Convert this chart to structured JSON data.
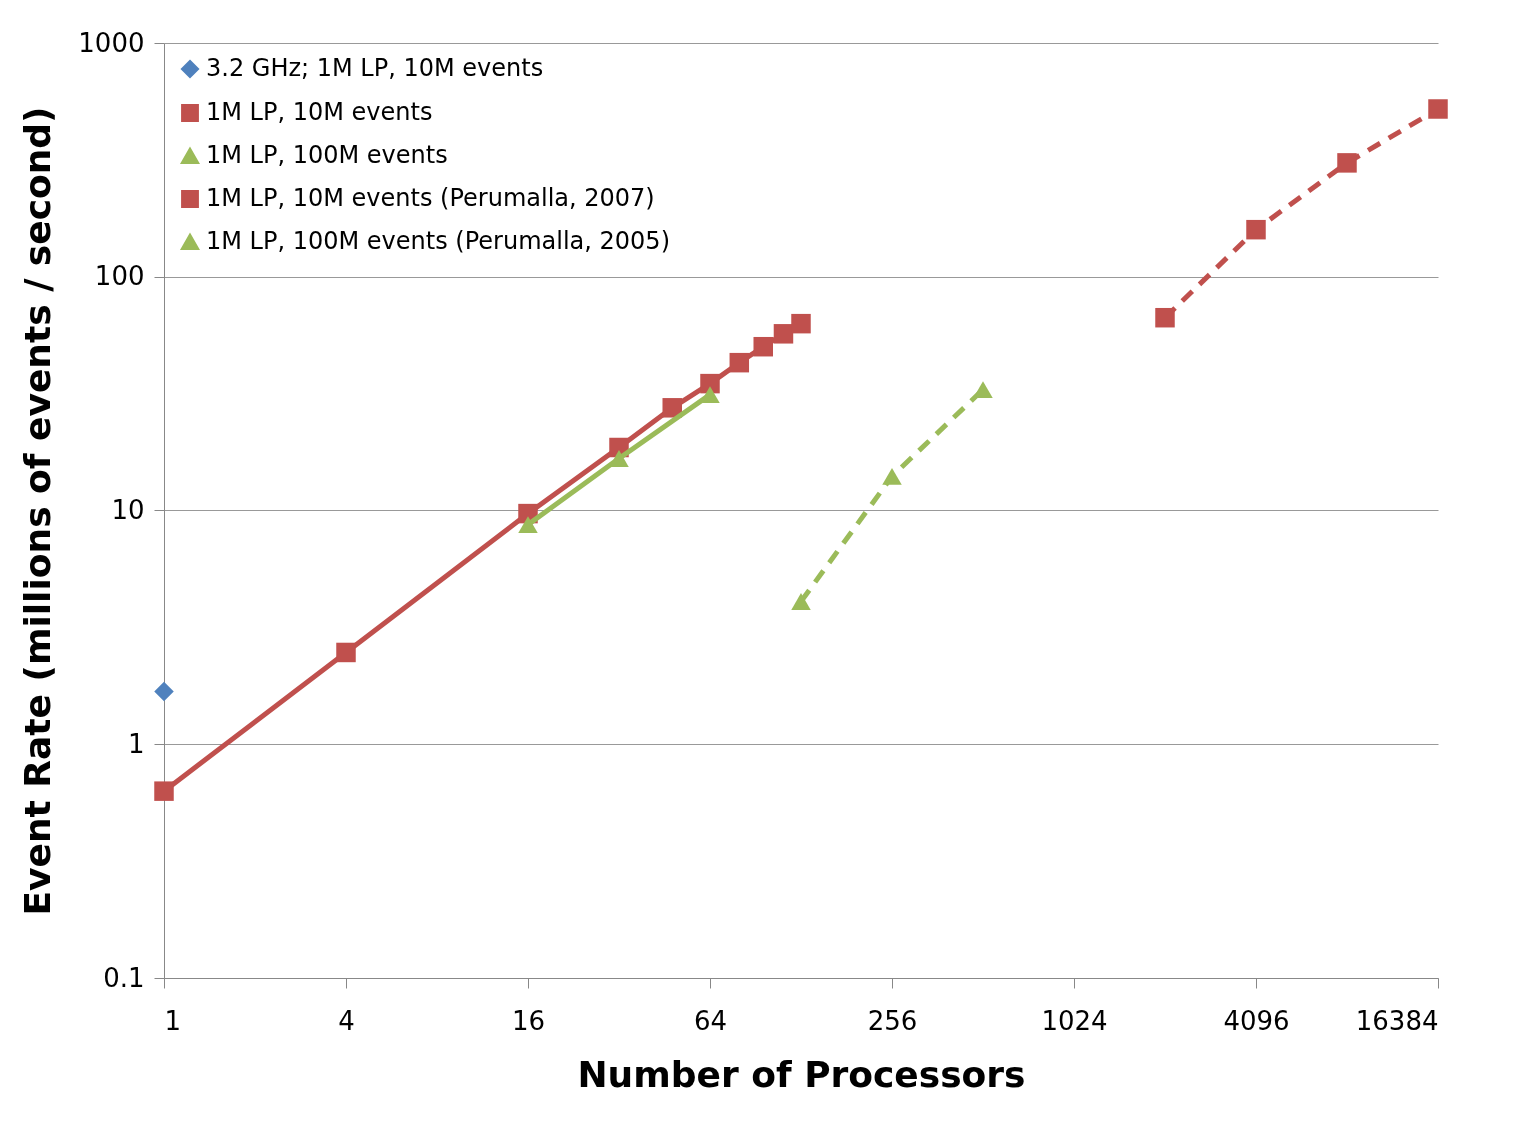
{
  "chart_data": {
    "type": "line",
    "xlabel": "Number of Processors",
    "ylabel": "Event Rate (millions of events / second)",
    "log": "xy",
    "xlim": [
      1,
      16384
    ],
    "xticks": [
      1,
      4,
      16,
      64,
      256,
      1024,
      4096,
      16384
    ],
    "ylim": [
      0.1,
      1000
    ],
    "yticks": [
      0.1,
      1,
      10,
      100,
      1000
    ],
    "grid": "y",
    "legend": "top left",
    "series": [
      {
        "name": "3.2 GHz; 1M LP, 10M events",
        "color": "#4f81bd",
        "marker": "diamond",
        "line_style": "solid",
        "x": [
          1
        ],
        "values": [
          1.68
        ]
      },
      {
        "name": "1M LP, 10M events",
        "color": "#c0504d",
        "marker": "square",
        "line_style": "solid",
        "x": [
          1,
          4,
          16,
          32,
          48,
          64,
          80,
          96,
          112,
          128
        ],
        "values": [
          0.63,
          2.47,
          9.7,
          18.6,
          27.5,
          34.9,
          42.9,
          50.2,
          57,
          63
        ]
      },
      {
        "name": "1M LP, 100M events",
        "color": "#9bbb59",
        "marker": "triangle",
        "line_style": "solid",
        "x": [
          16,
          32,
          64
        ],
        "values": [
          8.7,
          16.7,
          31.3
        ]
      },
      {
        "name": "1M LP, 10M events (Perumalla, 2007)",
        "color": "#c0504d",
        "marker": "square",
        "line_style": "dashed",
        "x": [
          2048,
          4096,
          8192,
          16384
        ],
        "values": [
          66.8,
          159,
          307,
          522
        ]
      },
      {
        "name": "1M LP, 100M events (Perumalla, 2005)",
        "color": "#9bbb59",
        "marker": "triangle",
        "line_style": "dashed",
        "x": [
          128,
          256,
          512
        ],
        "values": [
          4.08,
          14.0,
          32.9
        ]
      }
    ]
  }
}
